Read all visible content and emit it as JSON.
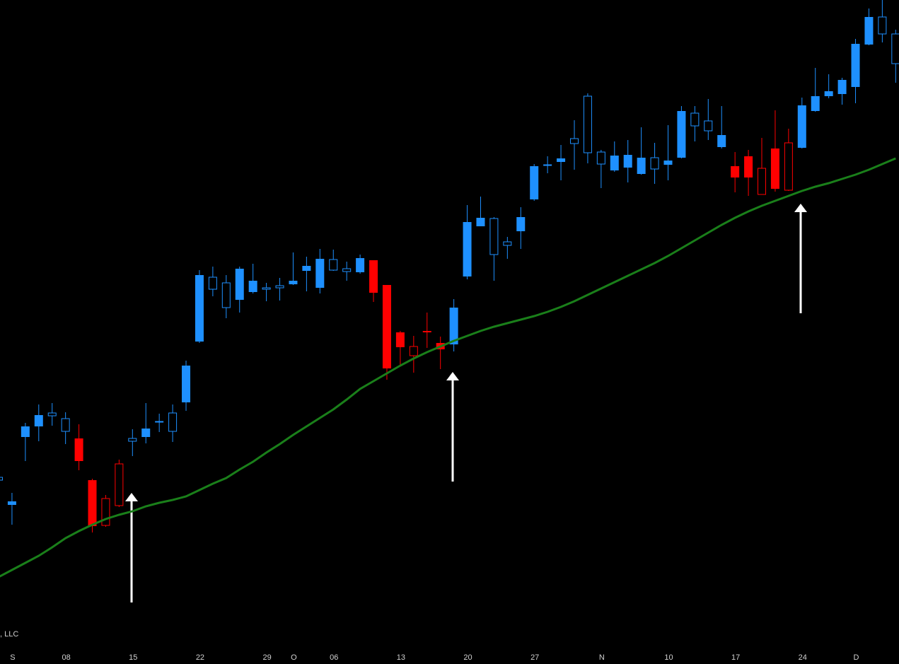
{
  "chart_data": {
    "type": "candlestick",
    "watermark": ", LLC",
    "ylim": [
      0,
      910
    ],
    "categories": [
      null,
      "S",
      null,
      null,
      null,
      "08",
      null,
      null,
      null,
      null,
      "15",
      null,
      null,
      null,
      null,
      "22",
      null,
      null,
      null,
      null,
      "29",
      null,
      "O",
      null,
      null,
      "06",
      null,
      null,
      null,
      null,
      "13",
      null,
      null,
      null,
      null,
      "20",
      null,
      null,
      null,
      null,
      "27",
      null,
      null,
      null,
      null,
      "N",
      null,
      null,
      null,
      null,
      "10",
      null,
      null,
      null,
      null,
      "17",
      null,
      null,
      null,
      null,
      "24",
      null,
      null,
      null,
      "D",
      null,
      null,
      null
    ],
    "open": [
      231,
      201,
      307,
      323,
      322,
      300,
      290,
      231,
      167,
      195,
      286,
      304,
      314,
      300,
      393,
      521,
      501,
      475,
      530,
      513,
      501,
      503,
      513,
      534,
      544,
      528,
      526,
      545,
      542,
      507,
      440,
      407,
      442,
      425,
      475,
      596,
      602,
      550,
      563,
      603,
      675,
      677,
      686,
      707,
      694,
      678,
      690,
      691,
      687,
      671,
      683,
      753,
      732,
      725,
      719,
      675,
      689,
      635,
      700,
      641,
      761,
      774,
      781,
      797,
      848,
      886,
      862,
      820
    ],
    "high": [
      235,
      213,
      312,
      338,
      340,
      327,
      310,
      233,
      210,
      260,
      303,
      340,
      325,
      338,
      400,
      528,
      533,
      521,
      533,
      537,
      510,
      517,
      553,
      547,
      558,
      557,
      540,
      550,
      542,
      507,
      442,
      435,
      468,
      434,
      487,
      620,
      632,
      603,
      575,
      617,
      678,
      689,
      705,
      740,
      778,
      698,
      710,
      712,
      730,
      708,
      733,
      760,
      760,
      770,
      760,
      695,
      698,
      715,
      754,
      728,
      772,
      814,
      805,
      800,
      855,
      898,
      910,
      868
    ],
    "low": [
      231,
      168,
      258,
      286,
      308,
      282,
      245,
      157,
      165,
      193,
      265,
      283,
      299,
      285,
      329,
      425,
      491,
      460,
      468,
      495,
      484,
      485,
      507,
      498,
      495,
      527,
      513,
      523,
      483,
      373,
      393,
      383,
      418,
      388,
      413,
      515,
      590,
      513,
      544,
      558,
      626,
      665,
      655,
      670,
      679,
      644,
      667,
      652,
      663,
      650,
      655,
      686,
      710,
      712,
      700,
      638,
      633,
      635,
      639,
      640,
      700,
      752,
      771,
      762,
      764,
      846,
      850,
      793
    ],
    "close": [
      235,
      196,
      292,
      307,
      326,
      318,
      258,
      166,
      205,
      254,
      290,
      292,
      314,
      326,
      341,
      427,
      518,
      510,
      486,
      497,
      503,
      506,
      508,
      527,
      503,
      543,
      530,
      525,
      496,
      389,
      419,
      420,
      440,
      416,
      423,
      519,
      590,
      601,
      568,
      583,
      628,
      677,
      681,
      714,
      774,
      695,
      669,
      673,
      664,
      687,
      677,
      687,
      750,
      739,
      702,
      659,
      659,
      672,
      643,
      708,
      701,
      753,
      774,
      777,
      787,
      847,
      886,
      862
    ],
    "colors": [
      "#1e90ff",
      "#1e90ff",
      "#1e90ff",
      "#1e90ff",
      "#1e90ff",
      "#1e90ff",
      "#ff0000",
      "#ff0000",
      "#ff0000",
      "#ff0000",
      "#1e90ff",
      "#1e90ff",
      "#1e90ff",
      "#1e90ff",
      "#1e90ff",
      "#1e90ff",
      "#1e90ff",
      "#1e90ff",
      "#1e90ff",
      "#1e90ff",
      "#1e90ff",
      "#1e90ff",
      "#1e90ff",
      "#1e90ff",
      "#1e90ff",
      "#1e90ff",
      "#1e90ff",
      "#1e90ff",
      "#ff0000",
      "#ff0000",
      "#ff0000",
      "#ff0000",
      "#ff0000",
      "#ff0000",
      "#1e90ff",
      "#1e90ff",
      "#1e90ff",
      "#1e90ff",
      "#1e90ff",
      "#1e90ff",
      "#1e90ff",
      "#1e90ff",
      "#1e90ff",
      "#1e90ff",
      "#1e90ff",
      "#1e90ff",
      "#1e90ff",
      "#1e90ff",
      "#1e90ff",
      "#1e90ff",
      "#1e90ff",
      "#1e90ff",
      "#1e90ff",
      "#1e90ff",
      "#1e90ff",
      "#ff0000",
      "#ff0000",
      "#ff0000",
      "#ff0000",
      "#ff0000",
      "#1e90ff",
      "#1e90ff",
      "#1e90ff",
      "#1e90ff",
      "#1e90ff",
      "#1e90ff",
      "#1e90ff",
      "#1e90ff"
    ],
    "ma": {
      "color": "#1a7f1a",
      "values": [
        94,
        104,
        114,
        124,
        136,
        149,
        159,
        168,
        176,
        182,
        187,
        194,
        199,
        203,
        208,
        217,
        226,
        234,
        246,
        257,
        270,
        282,
        295,
        307,
        319,
        331,
        345,
        360,
        371,
        382,
        393,
        403,
        412,
        420,
        428,
        435,
        442,
        448,
        453,
        458,
        463,
        469,
        476,
        484,
        493,
        502,
        511,
        520,
        529,
        538,
        548,
        559,
        570,
        581,
        592,
        602,
        611,
        619,
        626,
        633,
        640,
        646,
        651,
        657,
        663,
        670,
        678,
        686
      ]
    }
  }
}
